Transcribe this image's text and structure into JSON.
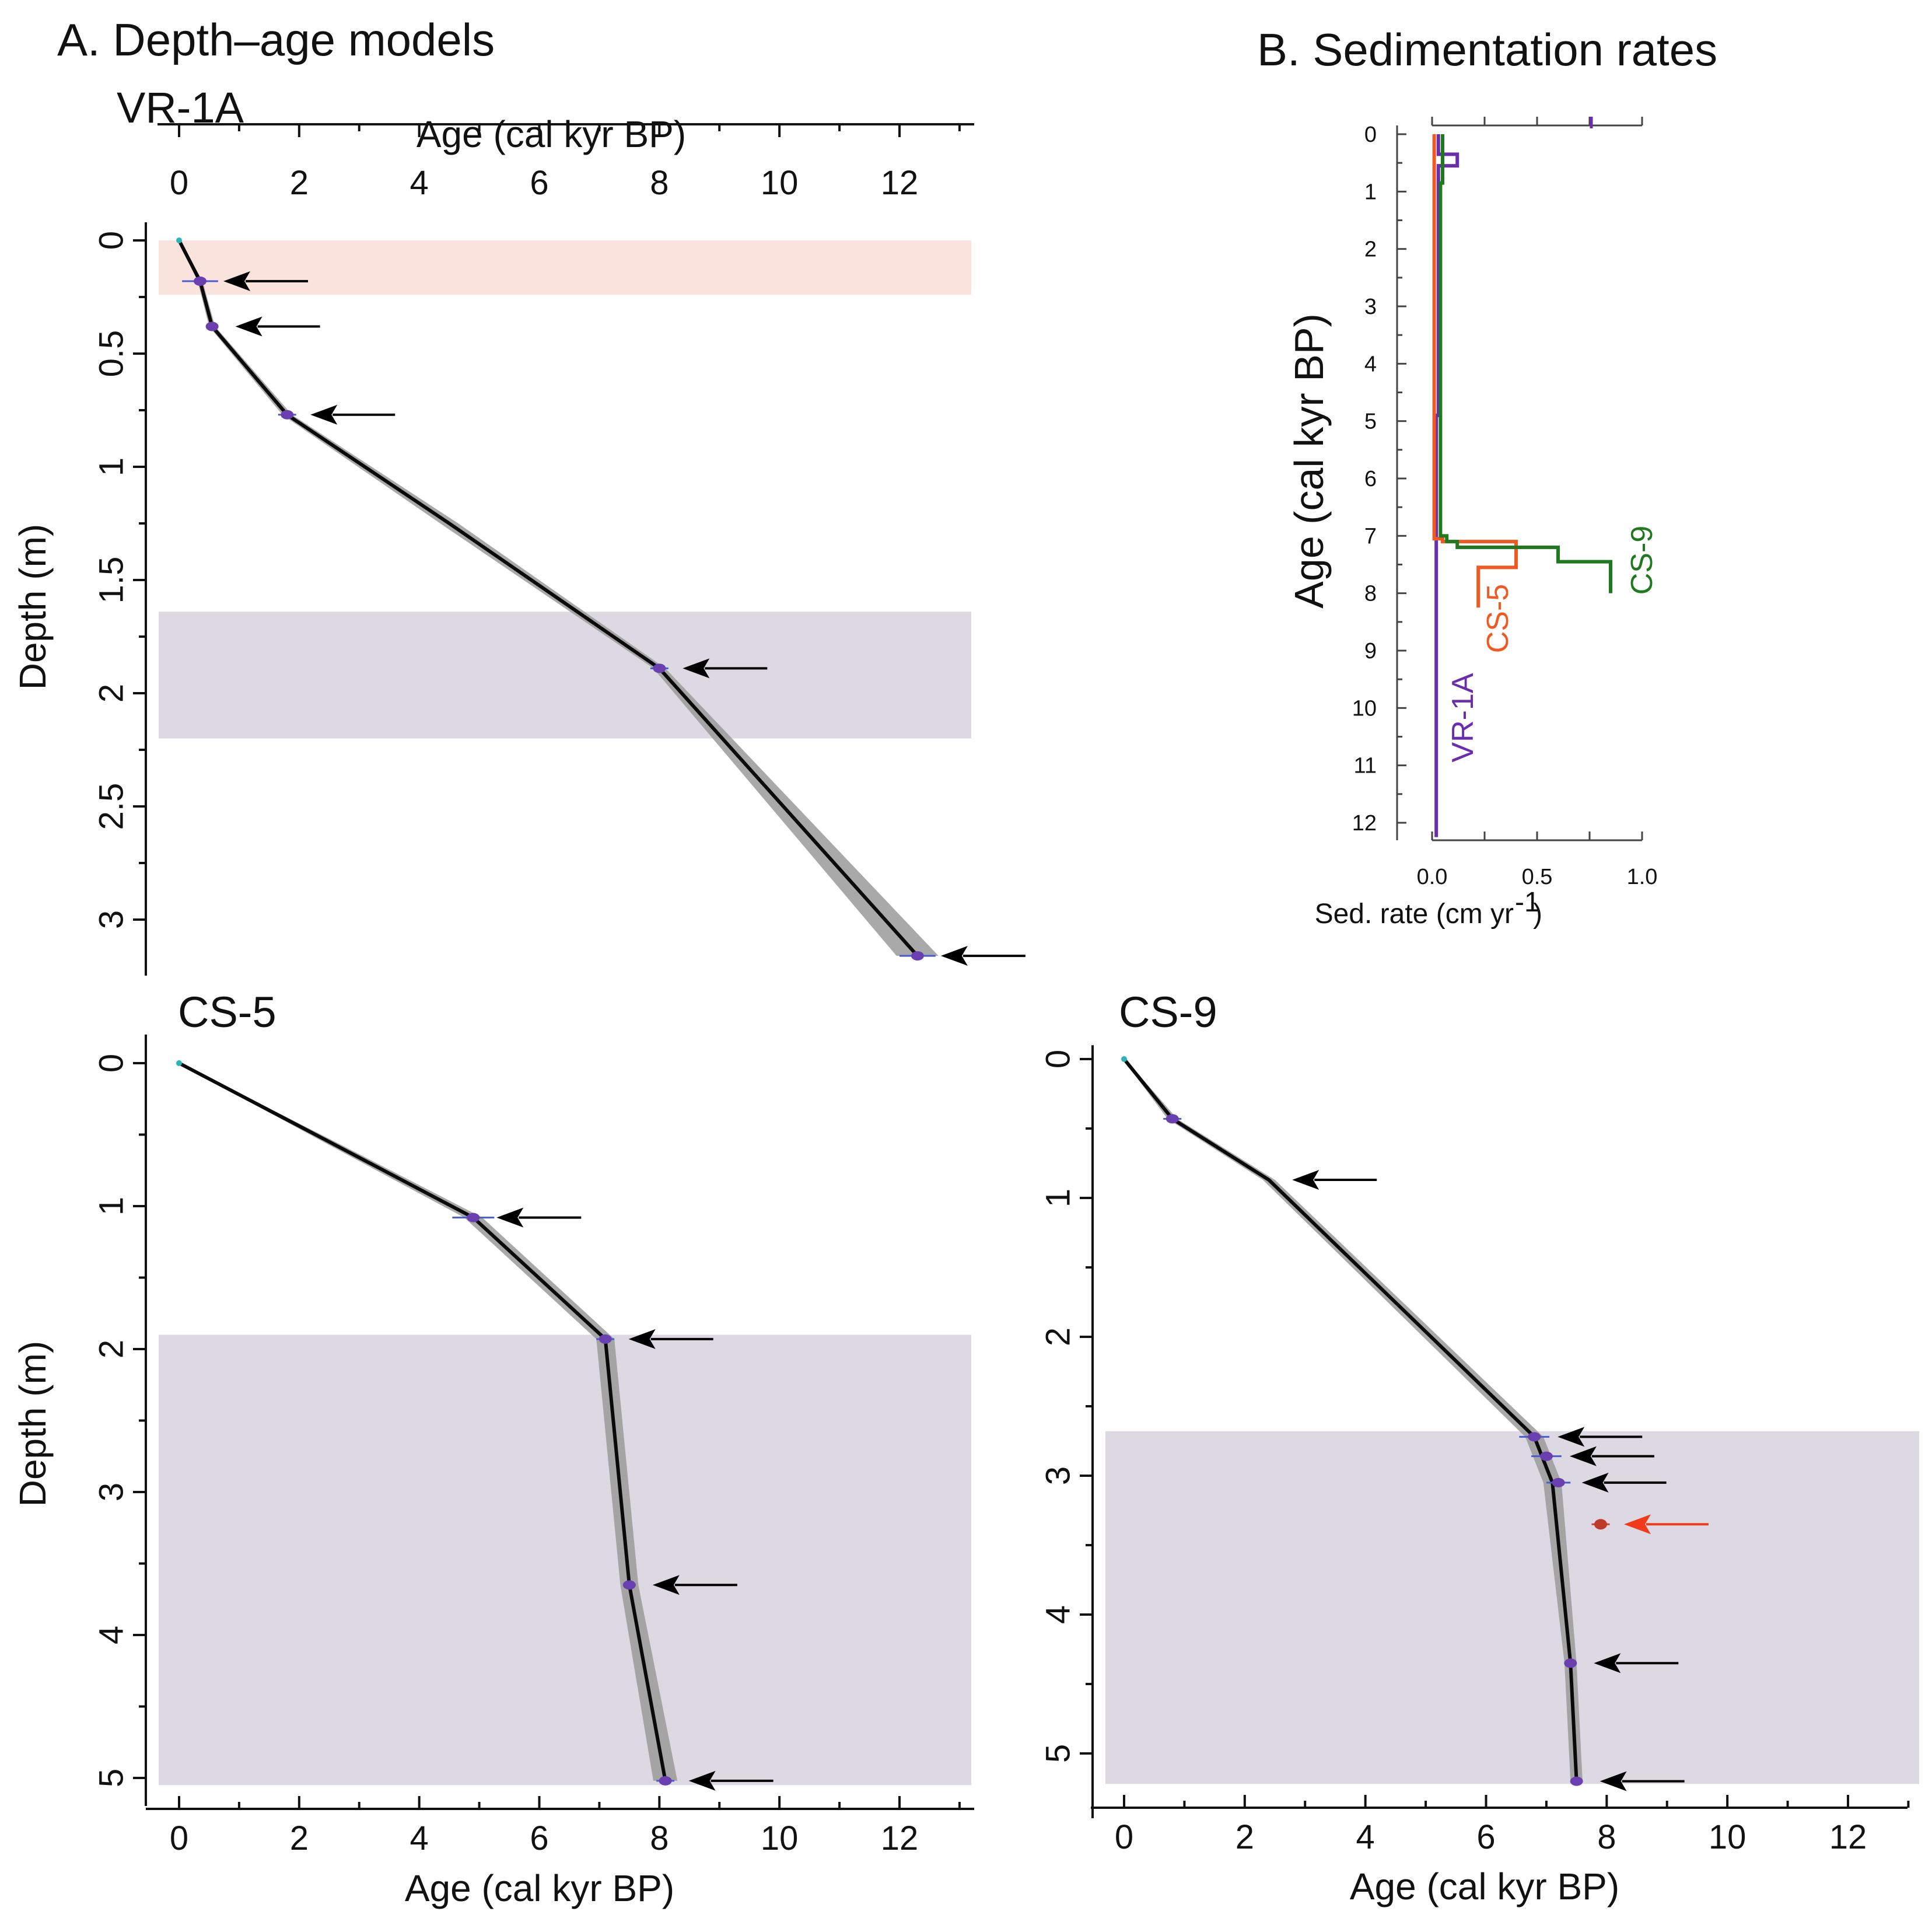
{
  "figure": {
    "title_a": "A. Depth–age models",
    "title_b": "B. Sedimentation rates"
  },
  "chart_data": [
    {
      "id": "vr1a",
      "type": "line",
      "title": "VR-1A",
      "xlabel": "Age (cal kyr BP)",
      "ylabel": "Depth (m)",
      "xlim": [
        -0.3,
        13.2
      ],
      "ylim": [
        0,
        3.2
      ],
      "xticks": [
        0,
        2,
        4,
        6,
        8,
        10,
        12
      ],
      "yticks": [
        0,
        0.5,
        1,
        1.5,
        2,
        2.5,
        3
      ],
      "ytick_labels": [
        "0",
        "0.5",
        "1",
        "1.5",
        "2",
        "2.5",
        "3"
      ],
      "x_axis_position": "top",
      "bands": [
        {
          "depth_from": 0,
          "depth_to": 0.24,
          "color": "#f9e3dc"
        },
        {
          "depth_from": 1.64,
          "depth_to": 2.2,
          "color": "#dcd9e2"
        }
      ],
      "model": [
        [
          0,
          0
        ],
        [
          0.35,
          0.18
        ],
        [
          0.55,
          0.38
        ],
        [
          1.8,
          0.77
        ],
        [
          4.5,
          1.25
        ],
        [
          8.0,
          1.89
        ],
        [
          12.3,
          3.16
        ]
      ],
      "uncertainty": [
        0.02,
        0.04,
        0.05,
        0.08,
        0.15,
        0.1,
        0.35
      ],
      "dates": [
        [
          0.35,
          0.18
        ],
        [
          0.55,
          0.38
        ],
        [
          1.8,
          0.77
        ],
        [
          8.0,
          1.89
        ],
        [
          12.3,
          3.16
        ]
      ],
      "date_errors": [
        0.3,
        0.1,
        0.15,
        0.15,
        0.3
      ],
      "arrows": [
        {
          "age": 0.35,
          "depth": 0.18,
          "color": "black"
        },
        {
          "age": 0.55,
          "depth": 0.38,
          "color": "black"
        },
        {
          "age": 1.8,
          "depth": 0.77,
          "color": "black"
        },
        {
          "age": 8.0,
          "depth": 1.89,
          "color": "black"
        },
        {
          "age": 12.3,
          "depth": 3.16,
          "color": "black"
        }
      ]
    },
    {
      "id": "cs5",
      "type": "line",
      "title": "CS-5",
      "xlabel": "Age (cal kyr BP)",
      "ylabel": "Depth (m)",
      "xlim": [
        -0.3,
        13.2
      ],
      "ylim": [
        -0.2,
        5.2
      ],
      "xticks": [
        0,
        2,
        4,
        6,
        8,
        10,
        12
      ],
      "yticks": [
        0,
        1,
        2,
        3,
        4,
        5
      ],
      "ytick_labels": [
        "0",
        "1",
        "2",
        "3",
        "4",
        "5"
      ],
      "x_axis_position": "bottom",
      "bands": [
        {
          "depth_from": 1.9,
          "depth_to": 5.05,
          "color": "#dcd9e2"
        }
      ],
      "model": [
        [
          0,
          0
        ],
        [
          2.5,
          0.55
        ],
        [
          4.9,
          1.08
        ],
        [
          7.1,
          1.93
        ],
        [
          7.5,
          3.65
        ],
        [
          8.1,
          5.02
        ]
      ],
      "uncertainty": [
        0.02,
        0.1,
        0.15,
        0.15,
        0.15,
        0.2
      ],
      "dates": [
        [
          4.9,
          1.08
        ],
        [
          7.1,
          1.93
        ],
        [
          7.5,
          3.65
        ],
        [
          8.1,
          5.02
        ]
      ],
      "date_errors": [
        0.35,
        0.15,
        0.1,
        0.15
      ],
      "arrows": [
        {
          "age": 4.9,
          "depth": 1.08,
          "color": "black"
        },
        {
          "age": 7.1,
          "depth": 1.93,
          "color": "black"
        },
        {
          "age": 7.5,
          "depth": 3.65,
          "color": "black"
        },
        {
          "age": 8.1,
          "depth": 5.02,
          "color": "black"
        }
      ]
    },
    {
      "id": "cs9",
      "type": "line",
      "title": "CS-9",
      "xlabel": "Age (cal kyr BP)",
      "ylabel": "",
      "xlim": [
        -0.3,
        13.2
      ],
      "ylim": [
        -0.1,
        5.4
      ],
      "xticks": [
        0,
        2,
        4,
        6,
        8,
        10,
        12
      ],
      "yticks": [
        0,
        1,
        2,
        3,
        4,
        5
      ],
      "ytick_labels": [
        "0",
        "1",
        "2",
        "3",
        "4",
        "5"
      ],
      "x_axis_position": "bottom",
      "bands": [
        {
          "depth_from": 2.68,
          "depth_to": 5.22,
          "color": "#dcd9e2"
        }
      ],
      "model": [
        [
          0,
          0
        ],
        [
          0.8,
          0.43
        ],
        [
          2.4,
          0.87
        ],
        [
          6.8,
          2.72
        ],
        [
          7.1,
          3.05
        ],
        [
          7.4,
          4.35
        ],
        [
          7.5,
          5.2
        ]
      ],
      "uncertainty": [
        0.02,
        0.08,
        0.1,
        0.15,
        0.15,
        0.1,
        0.1
      ],
      "dates": [
        [
          0.8,
          0.43
        ],
        [
          6.8,
          2.72
        ],
        [
          7.0,
          2.86
        ],
        [
          7.2,
          3.05
        ],
        [
          7.4,
          4.35
        ],
        [
          7.5,
          5.2
        ]
      ],
      "date_errors": [
        0.15,
        0.25,
        0.25,
        0.2,
        0.1,
        0.1
      ],
      "outlier": [
        7.9,
        3.35
      ],
      "arrows": [
        {
          "age": 2.4,
          "depth": 0.87,
          "color": "black"
        },
        {
          "age": 6.8,
          "depth": 2.72,
          "color": "black"
        },
        {
          "age": 7.0,
          "depth": 2.86,
          "color": "black"
        },
        {
          "age": 7.2,
          "depth": 3.05,
          "color": "black"
        },
        {
          "age": 7.9,
          "depth": 3.35,
          "color": "red"
        },
        {
          "age": 7.4,
          "depth": 4.35,
          "color": "black"
        },
        {
          "age": 7.5,
          "depth": 5.2,
          "color": "black"
        }
      ]
    },
    {
      "id": "sedrate",
      "type": "line",
      "title": "B. Sedimentation rates",
      "xlabel": "Sed. rate (cm yr",
      "xlabel_sup": "-1",
      "xlabel_close": ")",
      "ylabel": "Age (cal kyr BP)",
      "xlim": [
        0,
        1.0
      ],
      "ylim": [
        0,
        12.3
      ],
      "xticks": [
        0,
        0.25,
        0.5,
        0.75,
        1.0
      ],
      "xtick_labels": [
        "0.0",
        "",
        "0.5",
        "",
        "1.0"
      ],
      "yticks": [
        0,
        1,
        2,
        3,
        4,
        5,
        6,
        7,
        8,
        9,
        10,
        11,
        12
      ],
      "series": [
        {
          "name": "VR-1A",
          "color": "#6a2db0",
          "steps": [
            [
              0.03,
              0
            ],
            [
              0.03,
              0.35
            ],
            [
              0.12,
              0.35
            ],
            [
              0.12,
              0.55
            ],
            [
              0.03,
              0.55
            ],
            [
              0.03,
              4.9
            ],
            [
              0.02,
              4.9
            ],
            [
              0.02,
              7.9
            ],
            [
              0.02,
              12.25
            ]
          ]
        },
        {
          "name": "CS-5",
          "color": "#f05a22",
          "steps": [
            [
              0.01,
              0
            ],
            [
              0.01,
              7.05
            ],
            [
              0.05,
              7.05
            ],
            [
              0.05,
              7.1
            ],
            [
              0.4,
              7.1
            ],
            [
              0.4,
              7.55
            ],
            [
              0.22,
              7.55
            ],
            [
              0.22,
              8.25
            ]
          ]
        },
        {
          "name": "CS-9",
          "color": "#1f7a1f",
          "steps": [
            [
              0.05,
              0
            ],
            [
              0.05,
              0.85
            ],
            [
              0.04,
              0.85
            ],
            [
              0.04,
              7.0
            ],
            [
              0.07,
              7.0
            ],
            [
              0.07,
              7.1
            ],
            [
              0.12,
              7.1
            ],
            [
              0.12,
              7.2
            ],
            [
              0.6,
              7.2
            ],
            [
              0.6,
              7.45
            ],
            [
              0.85,
              7.45
            ],
            [
              0.85,
              8.0
            ]
          ]
        }
      ]
    }
  ]
}
